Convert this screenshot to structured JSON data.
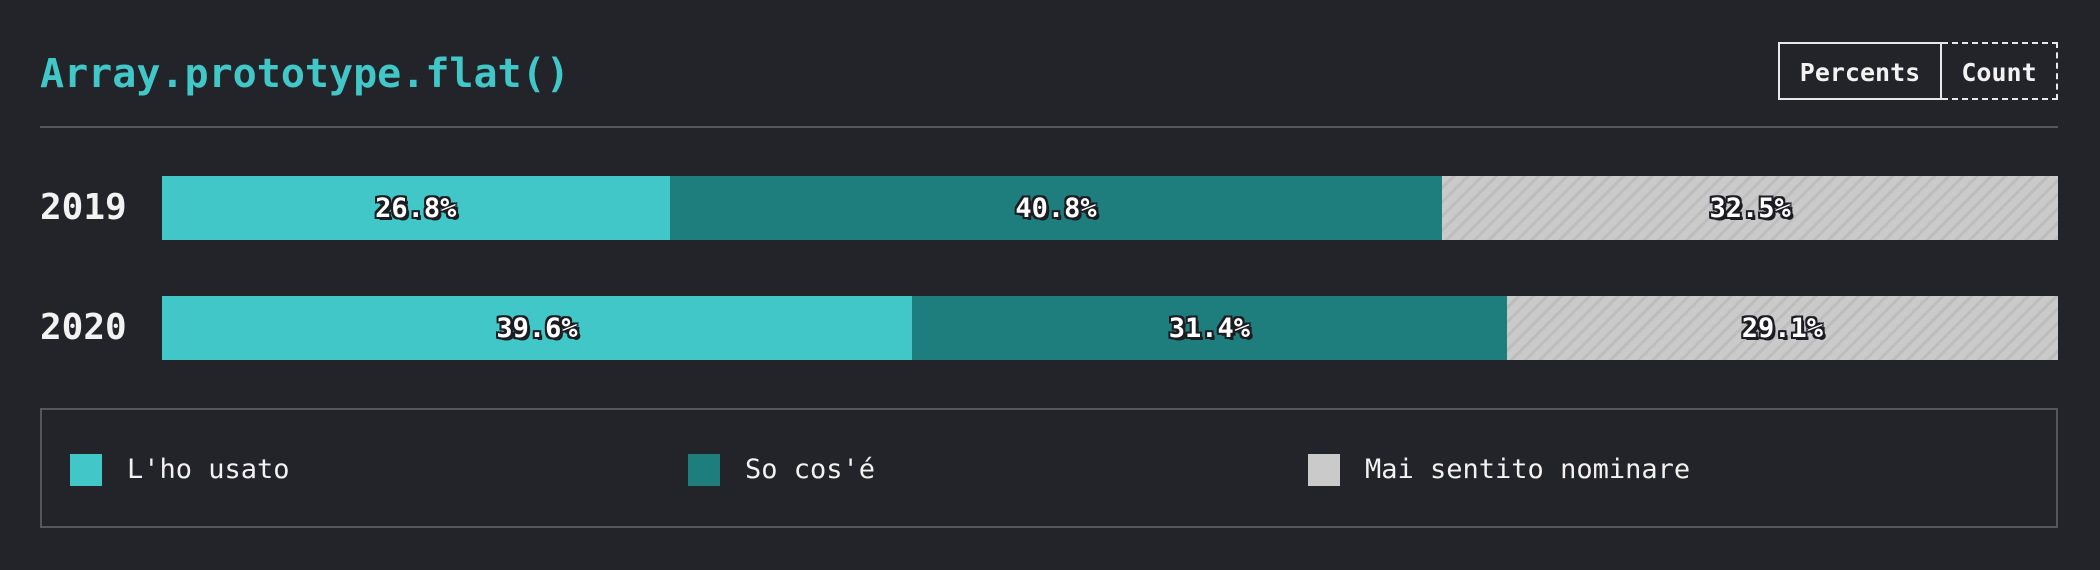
{
  "header": {
    "title": "Array.prototype.flat()"
  },
  "toggle": {
    "percents_label": "Percents",
    "count_label": "Count"
  },
  "colors": {
    "used": "#41c7c7",
    "know": "#1e7d7d",
    "never": "#cacaca",
    "never_stripe": "#bdbdbd"
  },
  "chart_data": {
    "type": "bar",
    "orientation": "horizontal",
    "stacked": true,
    "normalized": true,
    "title": "Array.prototype.flat()",
    "categories": [
      "2019",
      "2020"
    ],
    "series": [
      {
        "name": "L'ho usato",
        "values": [
          26.8,
          39.6
        ],
        "labels": [
          "26.8%",
          "39.6%"
        ],
        "color": "#41c7c7"
      },
      {
        "name": "So cos'é",
        "values": [
          40.8,
          31.4
        ],
        "labels": [
          "40.8%",
          "31.4%"
        ],
        "color": "#1e7d7d"
      },
      {
        "name": "Mai sentito nominare",
        "values": [
          32.5,
          29.1
        ],
        "labels": [
          "32.5%",
          "29.1%"
        ],
        "color": "#cacaca"
      }
    ],
    "legend_position": "bottom"
  }
}
